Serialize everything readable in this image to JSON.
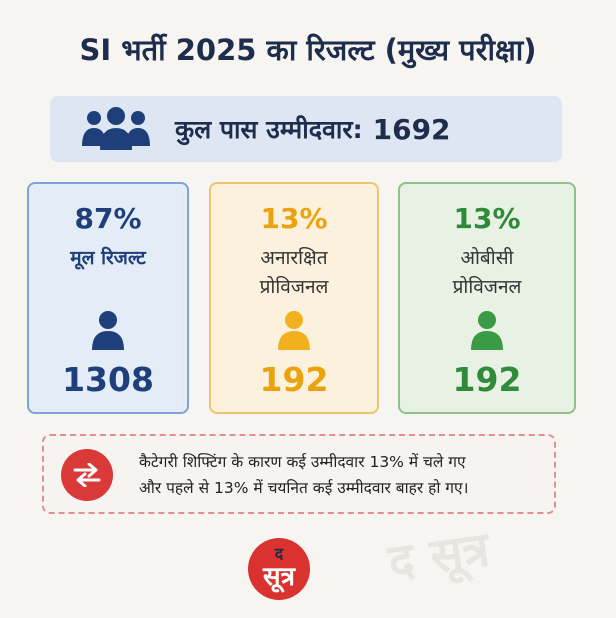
{
  "title": "SI भर्ती 2025 का रिजल्ट (मुख्य परीक्षा)",
  "total": {
    "label": "कुल पास उम्मीदवार:",
    "value": "1692",
    "icon": "people-group-icon"
  },
  "cards": [
    {
      "percent": "87%",
      "label_line1": "मूल रिजल्ट",
      "label_line2": "",
      "count": "1308",
      "color": "#1f3f7a"
    },
    {
      "percent": "13%",
      "label_line1": "अनारक्षित",
      "label_line2": "प्रोविजनल",
      "count": "192",
      "color": "#eba20f"
    },
    {
      "percent": "13%",
      "label_line1": "ओबीसी",
      "label_line2": "प्रोविजनल",
      "count": "192",
      "color": "#2f8a3a"
    }
  ],
  "note": {
    "line1": "कैटेगरी शिफ्टिंग के कारण कई उम्मीदवार 13% में चले गए",
    "line2": "और पहले से 13% में चयनित कई उम्मीदवार बाहर हो गए।",
    "icon": "swap-arrows-icon"
  },
  "logo": {
    "top": "द",
    "main": "सूत्र"
  },
  "watermark": "द सूत्र"
}
